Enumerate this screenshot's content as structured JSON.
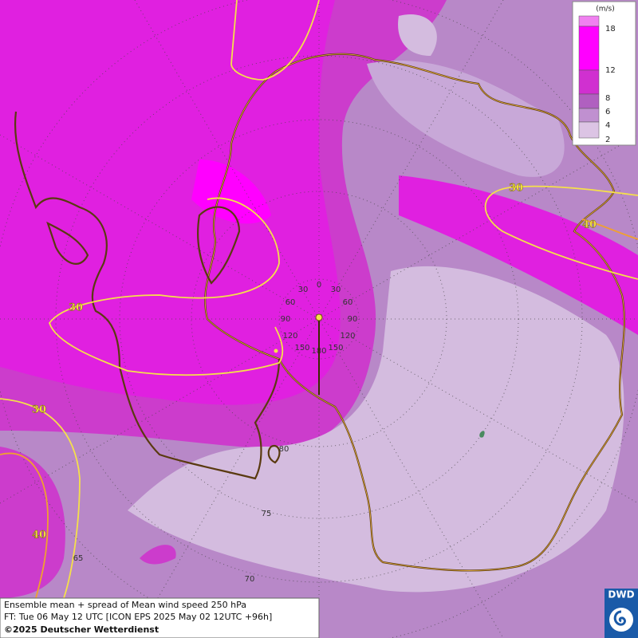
{
  "legend": {
    "unit": "(m/s)",
    "levels": [
      18,
      12,
      8,
      6,
      4,
      2
    ]
  },
  "contour_labels": [
    30,
    30,
    40,
    30,
    40
  ],
  "longitude_labels": {
    "left": [
      30,
      60,
      90,
      120,
      150
    ],
    "right": [
      30,
      60,
      90,
      120,
      150
    ],
    "top": 0,
    "bottom": 180
  },
  "latitude_labels": [
    80,
    75,
    70,
    65
  ],
  "caption": [
    "Ensemble mean + spread of Mean wind speed 250 hPa",
    "FT: Tue 06 May 12 UTC [ICON EPS 2025 May 02 12UTC +96h]",
    "©2025 Deutscher Wetterdienst"
  ],
  "logo": "DWD"
}
